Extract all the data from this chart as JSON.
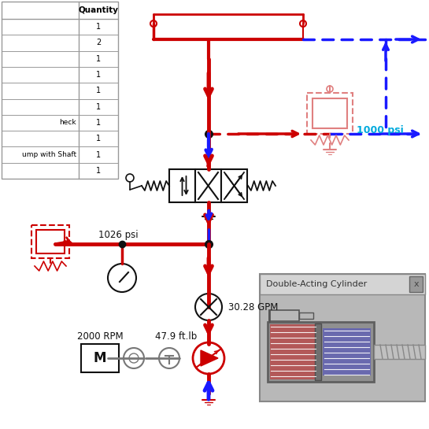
{
  "bg_color": "#ffffff",
  "red": "#cc0000",
  "blue": "#1a1aff",
  "cyan": "#00aadd",
  "light_red": "#e08080",
  "dark": "#111111",
  "gray": "#777777",
  "lgray": "#aaaaaa",
  "psi_1026": "1026 psi",
  "psi_1000": "1000 psi",
  "rpm_2000": "2000 RPM",
  "gpm_30": "30.28 GPM",
  "ftlb_47": "47.9 ft.lb",
  "cylinder_title": "Double-Acting Cylinder",
  "table_rows": [
    "",
    "",
    "",
    "",
    "",
    "",
    "heck",
    "",
    "ump with Shaft",
    ""
  ],
  "table_qtys": [
    1,
    2,
    1,
    1,
    1,
    1,
    1,
    1,
    1,
    1
  ]
}
